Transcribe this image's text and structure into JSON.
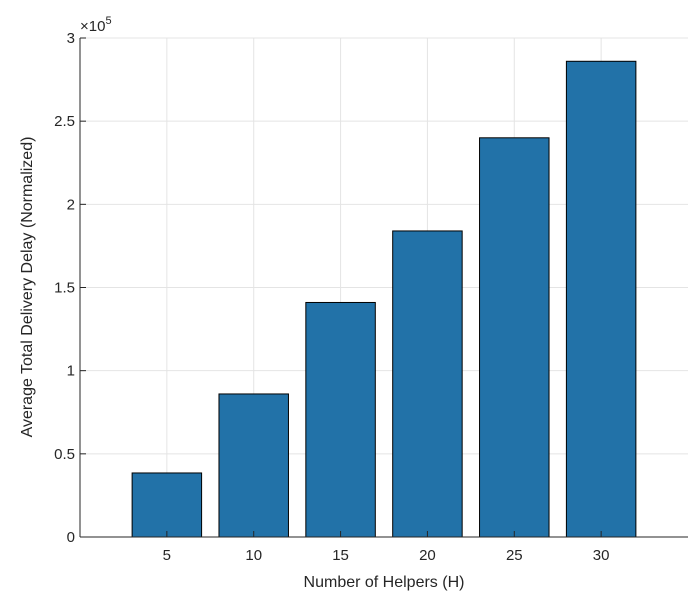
{
  "chart_data": {
    "type": "bar",
    "categories": [
      "5",
      "10",
      "15",
      "20",
      "25",
      "30"
    ],
    "values": [
      38500,
      86000,
      141000,
      184000,
      240000,
      286000
    ],
    "xlabel": "Number of Helpers (H)",
    "ylabel": "Average Total Delivery Delay (Normalized)",
    "ylim": [
      0,
      300000
    ],
    "y_exponent_prefix": "×10",
    "y_exponent_power": "5",
    "yticks": [
      0,
      50000,
      100000,
      150000,
      200000,
      250000,
      300000
    ],
    "ytick_labels": [
      "0",
      "0.5",
      "1",
      "1.5",
      "2",
      "2.5",
      "3"
    ],
    "xlim": [
      0,
      35
    ],
    "x_positions": [
      5,
      10,
      15,
      20,
      25,
      30
    ],
    "grid": true,
    "bar_color": "#2272a8",
    "edge_color": "#000000"
  }
}
